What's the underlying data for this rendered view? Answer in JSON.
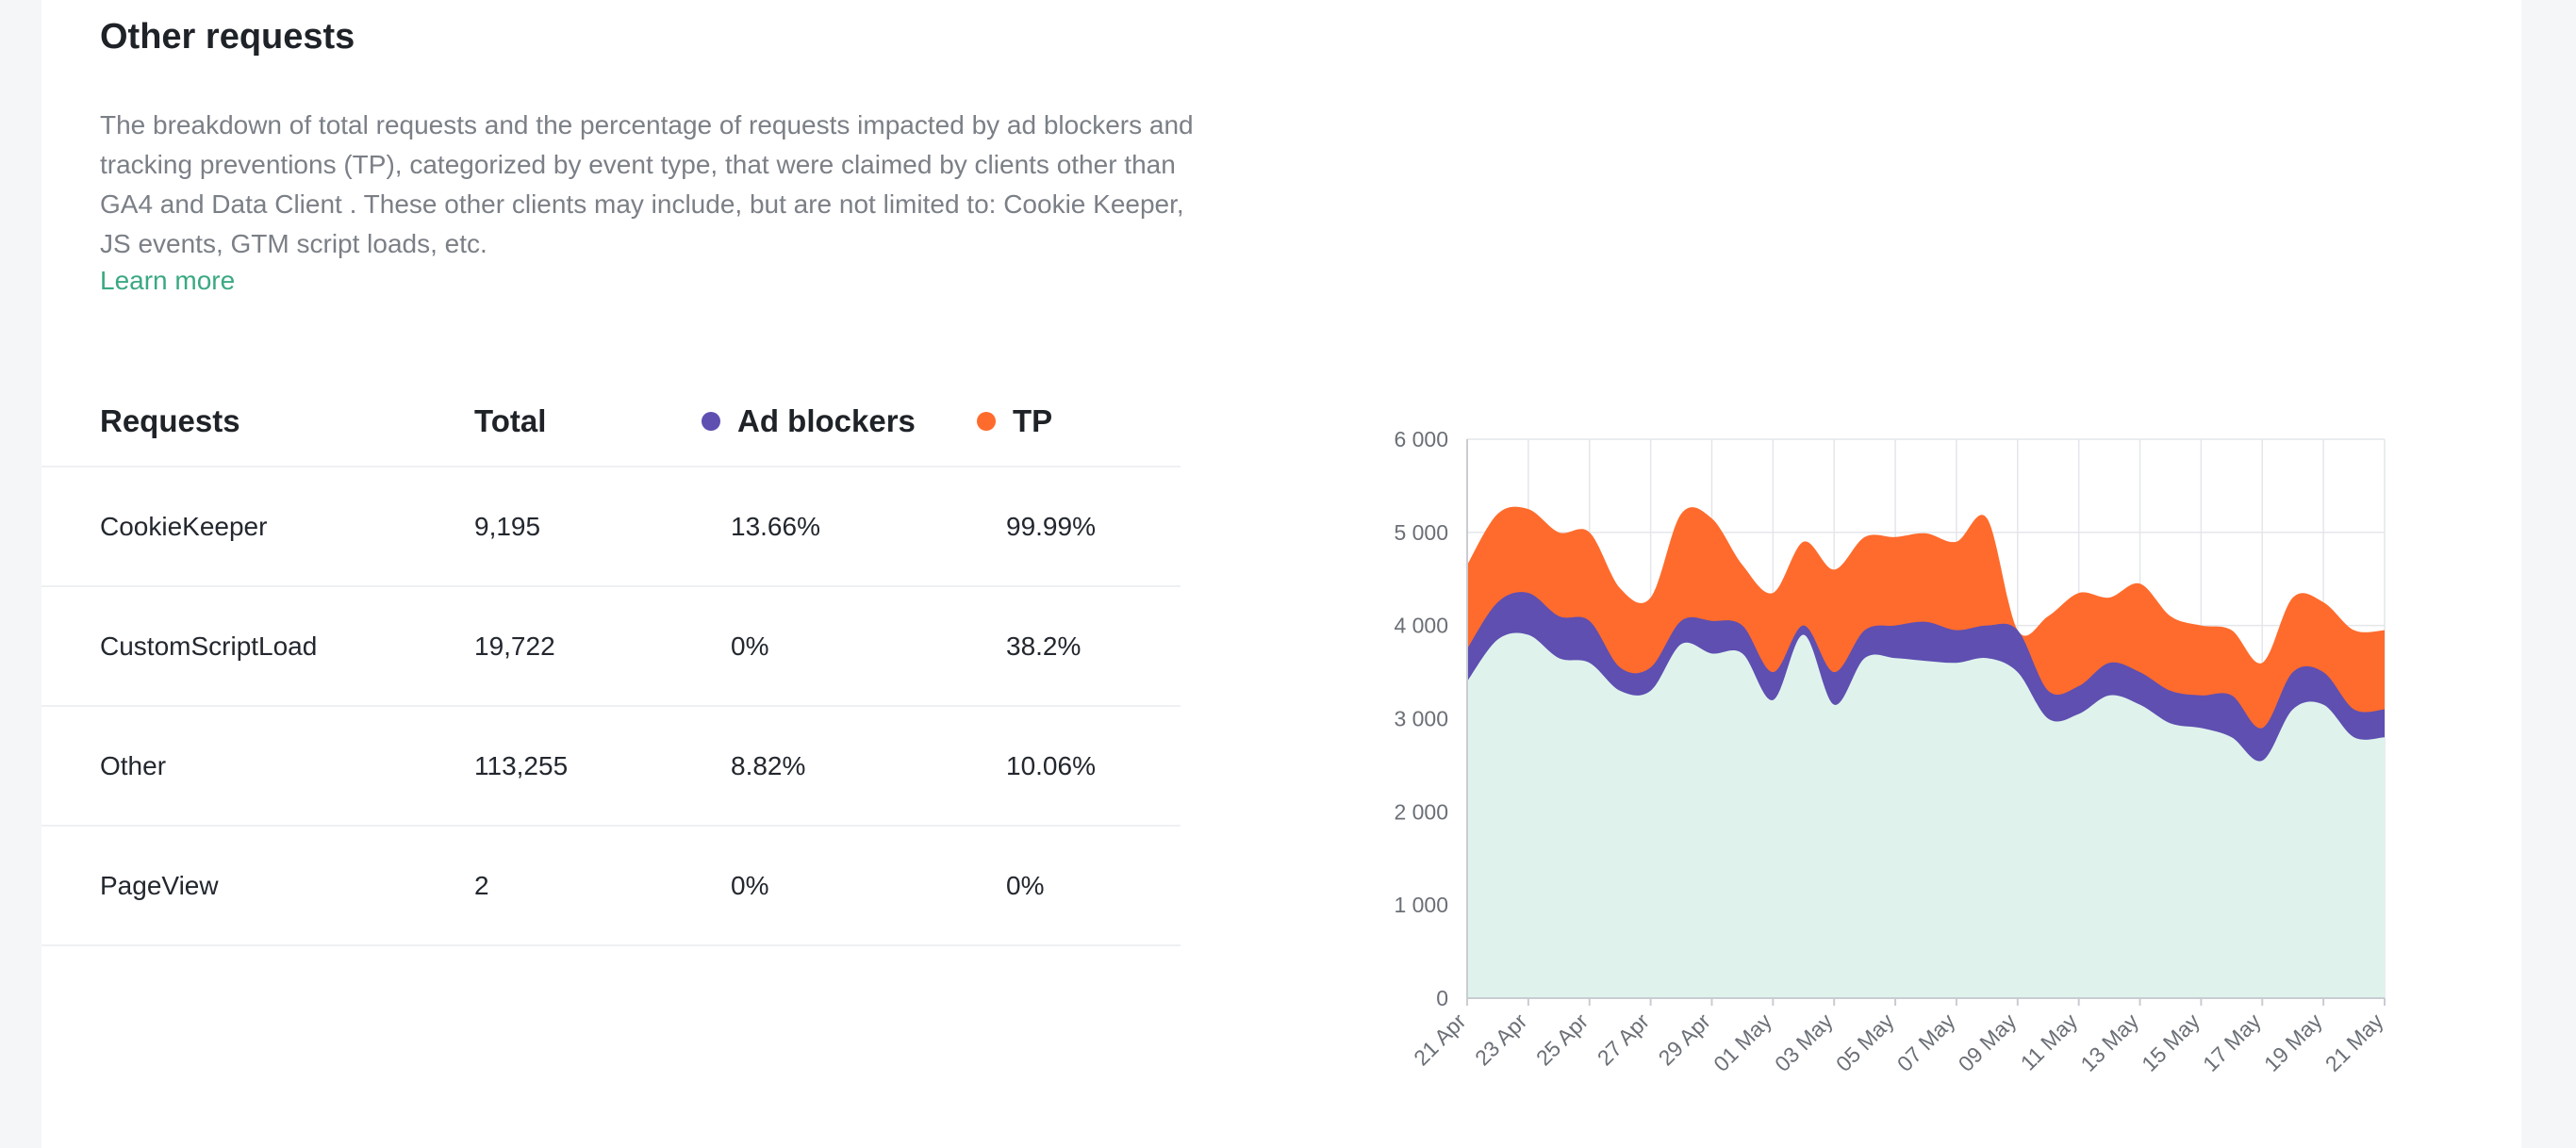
{
  "section": {
    "title": "Other requests",
    "description": "The breakdown of total requests and the percentage of requests impacted by ad blockers and tracking preventions (TP), categorized by event type, that were claimed by clients other than GA4 and Data Client . These other clients may include, but are not limited to: Cookie Keeper, JS events, GTM script loads, etc.",
    "learn_more": "Learn more"
  },
  "colors": {
    "ad_blockers": "#5e4fb1",
    "tp": "#ff6b2c",
    "base": "#dff3ec",
    "link": "#3aa981"
  },
  "table": {
    "headers": {
      "requests": "Requests",
      "total": "Total",
      "ad_blockers": "Ad blockers",
      "tp": "TP"
    },
    "rows": [
      {
        "name": "CookieKeeper",
        "total": "9,195",
        "ad_blockers": "13.66%",
        "tp": "99.99%"
      },
      {
        "name": "CustomScriptLoad",
        "total": "19,722",
        "ad_blockers": "0%",
        "tp": "38.2%"
      },
      {
        "name": "Other",
        "total": "113,255",
        "ad_blockers": "8.82%",
        "tp": "10.06%"
      },
      {
        "name": "PageView",
        "total": "2",
        "ad_blockers": "0%",
        "tp": "0%"
      }
    ]
  },
  "chart_data": {
    "type": "area",
    "stacked": true,
    "x": [
      "21 Apr",
      "22 Apr",
      "23 Apr",
      "24 Apr",
      "25 Apr",
      "26 Apr",
      "27 Apr",
      "28 Apr",
      "29 Apr",
      "30 Apr",
      "01 May",
      "02 May",
      "03 May",
      "04 May",
      "05 May",
      "06 May",
      "07 May",
      "08 May",
      "09 May",
      "10 May",
      "11 May",
      "12 May",
      "13 May",
      "14 May",
      "15 May",
      "16 May",
      "17 May",
      "18 May",
      "19 May",
      "20 May",
      "21 May"
    ],
    "x_tick_labels": [
      "21 Apr",
      "23 Apr",
      "25 Apr",
      "27 Apr",
      "29 Apr",
      "01 May",
      "03 May",
      "05 May",
      "07 May",
      "09 May",
      "11 May",
      "13 May",
      "15 May",
      "17 May",
      "19 May",
      "21 May"
    ],
    "ylim": [
      0,
      6000
    ],
    "y_ticks": [
      0,
      1000,
      2000,
      3000,
      4000,
      5000,
      6000
    ],
    "y_tick_labels": [
      "0",
      "1 000",
      "2 000",
      "3 000",
      "4 000",
      "5 000",
      "6 000"
    ],
    "grid": true,
    "series": [
      {
        "color_key": "base",
        "values": [
          3400,
          3850,
          3900,
          3650,
          3600,
          3300,
          3300,
          3800,
          3700,
          3700,
          3200,
          3900,
          3150,
          3650,
          3650,
          3620,
          3600,
          3650,
          3500,
          3000,
          3050,
          3250,
          3150,
          2950,
          2900,
          2800,
          2550,
          3100,
          3150,
          2800,
          2800
        ]
      },
      {
        "name": "Ad blockers",
        "color_key": "ad_blockers",
        "values": [
          350,
          400,
          450,
          450,
          450,
          250,
          250,
          250,
          350,
          300,
          300,
          100,
          350,
          300,
          350,
          420,
          350,
          350,
          450,
          300,
          300,
          350,
          350,
          350,
          350,
          450,
          350,
          400,
          350,
          300,
          300
        ]
      },
      {
        "name": "TP",
        "color_key": "tp",
        "values": [
          900,
          950,
          900,
          900,
          950,
          850,
          750,
          1150,
          1100,
          650,
          850,
          900,
          1100,
          1000,
          950,
          950,
          950,
          1150,
          0,
          800,
          1000,
          700,
          950,
          800,
          750,
          700,
          700,
          800,
          750,
          850,
          850
        ]
      }
    ]
  }
}
